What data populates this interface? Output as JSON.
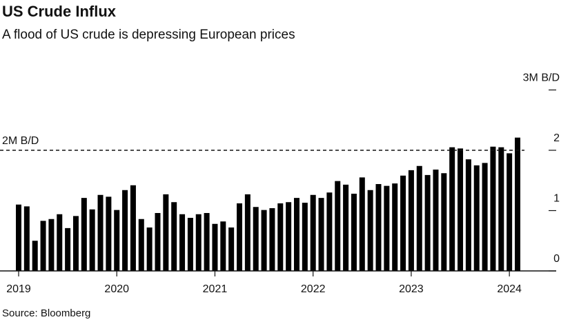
{
  "chart_data": {
    "type": "bar",
    "title": "US Crude Influx",
    "subtitle": "A flood of US crude is depressing European prices",
    "source": "Source: Bloomberg",
    "color": "#000000",
    "categories": [
      "2019",
      null,
      null,
      null,
      null,
      null,
      null,
      null,
      null,
      null,
      null,
      null,
      "2020",
      null,
      null,
      null,
      null,
      null,
      null,
      null,
      null,
      null,
      null,
      null,
      "2021",
      null,
      null,
      null,
      null,
      null,
      null,
      null,
      null,
      null,
      null,
      null,
      "2022",
      null,
      null,
      null,
      null,
      null,
      null,
      null,
      null,
      null,
      null,
      null,
      "2023",
      null,
      null,
      null,
      null,
      null,
      null,
      null,
      null,
      null,
      null,
      null,
      "2024",
      null
    ],
    "values": [
      1.1,
      1.07,
      0.5,
      0.83,
      0.86,
      0.94,
      0.71,
      0.91,
      1.21,
      1.02,
      1.26,
      1.23,
      1.01,
      1.34,
      1.42,
      0.86,
      0.72,
      0.96,
      1.27,
      1.14,
      0.94,
      0.88,
      0.94,
      0.96,
      0.78,
      0.82,
      0.72,
      1.12,
      1.27,
      1.06,
      1.01,
      1.04,
      1.12,
      1.14,
      1.21,
      1.13,
      1.26,
      1.21,
      1.3,
      1.49,
      1.43,
      1.28,
      1.55,
      1.34,
      1.44,
      1.41,
      1.45,
      1.58,
      1.67,
      1.74,
      1.59,
      1.68,
      1.62,
      2.05,
      2.03,
      1.85,
      1.75,
      1.79,
      2.06,
      2.05,
      1.95,
      2.21
    ],
    "ylim": [
      0,
      3.4
    ],
    "yticks": [
      0,
      1,
      2,
      {
        "value": 3,
        "label": "3M B/D"
      }
    ],
    "reference_line": {
      "value": 2,
      "label": "2M B/D"
    }
  }
}
